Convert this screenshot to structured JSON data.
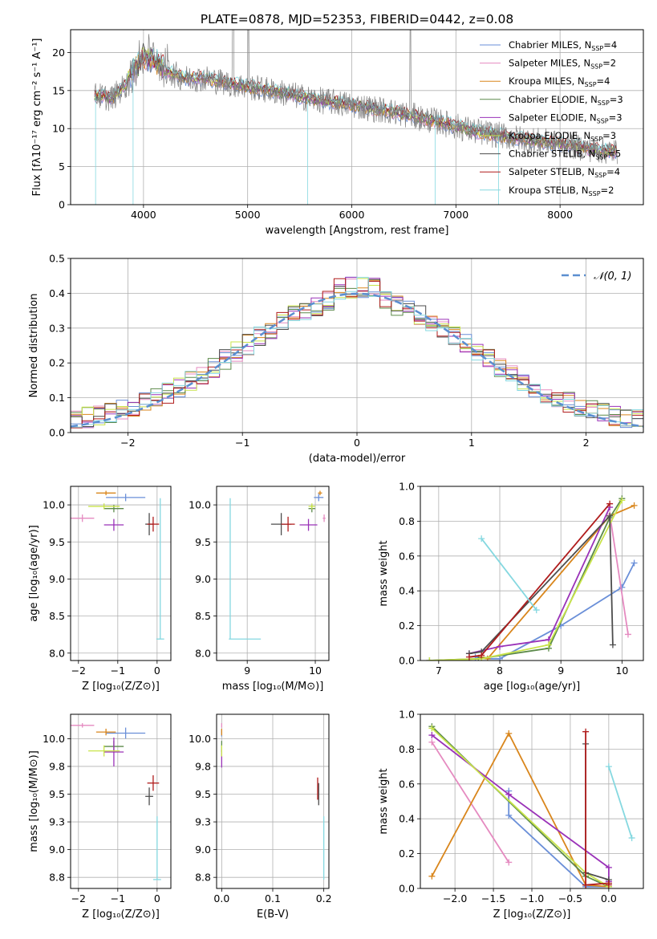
{
  "figure": {
    "title": "PLATE=0878, MJD=52353, FIBERID=0442, z=0.08"
  },
  "series": [
    {
      "name": "Chabrier MILES, N",
      "sub": "SSP",
      "tail": "=4",
      "color": "#6a8fd8"
    },
    {
      "name": "Salpeter MILES, N",
      "sub": "SSP",
      "tail": "=2",
      "color": "#e58ac0"
    },
    {
      "name": "Kroupa MILES, N",
      "sub": "SSP",
      "tail": "=4",
      "color": "#d9861c"
    },
    {
      "name": "Chabrier ELODIE, N",
      "sub": "SSP",
      "tail": "=3",
      "color": "#5c8a4a"
    },
    {
      "name": "Salpeter ELODIE, N",
      "sub": "SSP",
      "tail": "=3",
      "color": "#9a32b8"
    },
    {
      "name": "Kroupa ELODIE, N",
      "sub": "SSP",
      "tail": "=3",
      "color": "#c9e44a"
    },
    {
      "name": "Chabrier STELIB, N",
      "sub": "SSP",
      "tail": "=5",
      "color": "#4d4d4d"
    },
    {
      "name": "Salpeter STELIB, N",
      "sub": "SSP",
      "tail": "=4",
      "color": "#b01c1c"
    },
    {
      "name": "Kroupa STELIB, N",
      "sub": "SSP",
      "tail": "=2",
      "color": "#85d8e0"
    }
  ],
  "chart_data": [
    {
      "id": "spectrum",
      "type": "line",
      "xlabel": "wavelength [Angstrom, rest frame]",
      "ylabel": "Flux [fλ10⁻¹⁷ erg cm⁻² s⁻¹ A⁻¹]",
      "xlim": [
        3300,
        8800
      ],
      "ylim": [
        0,
        23
      ],
      "xticks": [
        4000,
        5000,
        6000,
        7000,
        8000
      ],
      "yticks": [
        0,
        5,
        10,
        15,
        20
      ],
      "data_color": "#808080",
      "continuum": [
        [
          3550,
          14.3
        ],
        [
          3700,
          14.0
        ],
        [
          3850,
          16.0
        ],
        [
          4000,
          19.0
        ],
        [
          4200,
          17.6
        ],
        [
          4400,
          16.6
        ],
        [
          4600,
          16.6
        ],
        [
          4800,
          16.0
        ],
        [
          5000,
          15.5
        ],
        [
          5300,
          14.8
        ],
        [
          5600,
          13.9
        ],
        [
          6000,
          13.1
        ],
        [
          6400,
          12.2
        ],
        [
          6800,
          11.0
        ],
        [
          7200,
          9.6
        ],
        [
          7600,
          8.7
        ],
        [
          8000,
          8.0
        ],
        [
          8400,
          7.1
        ],
        [
          8550,
          7.0
        ]
      ],
      "legend_loc": "upper right"
    },
    {
      "id": "residuals",
      "type": "histogram",
      "xlabel": "(data-model)/error",
      "ylabel": "Normed distribution",
      "xlim": [
        -2.5,
        2.5
      ],
      "ylim": [
        0,
        0.5
      ],
      "xticks": [
        -2,
        -1,
        0,
        1,
        2
      ],
      "yticks": [
        0.0,
        0.1,
        0.2,
        0.3,
        0.4,
        0.5
      ],
      "legend_label": "𝒩(0, 1)",
      "gaussian_color": "#5b8fd0",
      "legend_loc": "upper right"
    },
    {
      "id": "age-vs-Z",
      "type": "errorbar",
      "xlabel": "Z [log₁₀(Z/Z⊙)]",
      "ylabel": "age  [log₁₀(age/yr)]",
      "xlim": [
        -2.2,
        0.35
      ],
      "ylim": [
        7.9,
        10.25
      ],
      "xticks": [
        -2,
        -1,
        0
      ],
      "yticks": [
        8.0,
        8.5,
        9.0,
        9.5,
        10.0
      ],
      "points": [
        {
          "s": 0,
          "x": -0.8,
          "y": 10.1,
          "xe": [
            0.5,
            0.5
          ],
          "ye": [
            0.05,
            0.05
          ]
        },
        {
          "s": 1,
          "x": -1.9,
          "y": 9.82,
          "xe": [
            0.3,
            0.3
          ],
          "ye": [
            0.05,
            0.05
          ]
        },
        {
          "s": 2,
          "x": -1.3,
          "y": 10.16,
          "xe": [
            0.25,
            0.25
          ],
          "ye": [
            0.03,
            0.03
          ]
        },
        {
          "s": 3,
          "x": -1.1,
          "y": 9.95,
          "xe": [
            0.25,
            0.25
          ],
          "ye": [
            0.05,
            0.05
          ]
        },
        {
          "s": 4,
          "x": -1.1,
          "y": 9.73,
          "xe": [
            0.25,
            0.25
          ],
          "ye": [
            0.08,
            0.08
          ]
        },
        {
          "s": 5,
          "x": -1.35,
          "y": 9.98,
          "xe": [
            0.4,
            0.4
          ],
          "ye": [
            0.04,
            0.04
          ]
        },
        {
          "s": 6,
          "x": -0.2,
          "y": 9.74,
          "xe": [
            0.1,
            0.1
          ],
          "ye": [
            0.15,
            0.15
          ]
        },
        {
          "s": 7,
          "x": -0.1,
          "y": 9.74,
          "xe": [
            0.15,
            0.15
          ],
          "ye": [
            0.1,
            0.1
          ]
        },
        {
          "s": 8,
          "x": 0.08,
          "y": 8.19,
          "xe": [
            0.1,
            0.1
          ],
          "ye": [
            0.0,
            1.9
          ]
        }
      ]
    },
    {
      "id": "age-vs-mass",
      "type": "errorbar",
      "xlabel": "mass [log₁₀(M/M⊙)]",
      "ylabel": "",
      "xlim": [
        8.55,
        10.2
      ],
      "ylim": [
        7.9,
        10.25
      ],
      "xticks": [
        9,
        10
      ],
      "yticks": [
        8.0,
        8.5,
        9.0,
        9.5,
        10.0
      ],
      "points": [
        {
          "s": 0,
          "x": 10.05,
          "y": 10.1,
          "xe": [
            0.07,
            0.07
          ],
          "ye": [
            0.05,
            0.05
          ]
        },
        {
          "s": 1,
          "x": 10.13,
          "y": 9.82,
          "xe": [
            0.02,
            0.02
          ],
          "ye": [
            0.05,
            0.05
          ]
        },
        {
          "s": 2,
          "x": 10.07,
          "y": 10.16,
          "xe": [
            0.03,
            0.03
          ],
          "ye": [
            0.03,
            0.03
          ]
        },
        {
          "s": 3,
          "x": 9.95,
          "y": 9.95,
          "xe": [
            0.05,
            0.05
          ],
          "ye": [
            0.05,
            0.05
          ]
        },
        {
          "s": 4,
          "x": 9.9,
          "y": 9.73,
          "xe": [
            0.13,
            0.13
          ],
          "ye": [
            0.08,
            0.08
          ]
        },
        {
          "s": 5,
          "x": 9.95,
          "y": 9.98,
          "xe": [
            0.05,
            0.05
          ],
          "ye": [
            0.04,
            0.04
          ]
        },
        {
          "s": 6,
          "x": 9.5,
          "y": 9.74,
          "xe": [
            0.15,
            0.15
          ],
          "ye": [
            0.15,
            0.15
          ]
        },
        {
          "s": 7,
          "x": 9.6,
          "y": 9.74,
          "xe": [
            0.1,
            0.1
          ],
          "ye": [
            0.1,
            0.1
          ]
        },
        {
          "s": 8,
          "x": 8.75,
          "y": 8.19,
          "xe": [
            0.02,
            0.45
          ],
          "ye": [
            0.0,
            1.9
          ]
        }
      ]
    },
    {
      "id": "massweight-vs-age",
      "type": "line",
      "xlabel": "age  [log₁₀(age/yr)]",
      "ylabel": "mass weight",
      "xlim": [
        6.7,
        10.35
      ],
      "ylim": [
        0,
        1.0
      ],
      "xticks": [
        7,
        8,
        9,
        10
      ],
      "yticks": [
        0.0,
        0.2,
        0.4,
        0.6,
        0.8,
        1.0
      ],
      "lines": [
        {
          "s": 0,
          "x": [
            7.6,
            7.8,
            8.0,
            9.0,
            10.0,
            10.2
          ],
          "y": [
            0.02,
            0.01,
            0.01,
            0.2,
            0.42,
            0.56
          ]
        },
        {
          "s": 1,
          "x": [
            9.8,
            10.1
          ],
          "y": [
            0.84,
            0.15
          ]
        },
        {
          "s": 2,
          "x": [
            7.7,
            7.8,
            9.8,
            10.2
          ],
          "y": [
            0.02,
            0.01,
            0.83,
            0.89
          ]
        },
        {
          "s": 3,
          "x": [
            6.85,
            7.65,
            8.8,
            9.8,
            10.0
          ],
          "y": [
            0.0,
            0.01,
            0.07,
            0.82,
            0.93
          ]
        },
        {
          "s": 4,
          "x": [
            7.5,
            8.0,
            8.8,
            9.8
          ],
          "y": [
            0.04,
            0.08,
            0.12,
            0.88
          ]
        },
        {
          "s": 5,
          "x": [
            6.85,
            7.7,
            8.8,
            10.0
          ],
          "y": [
            0.0,
            0.01,
            0.09,
            0.92
          ]
        },
        {
          "s": 6,
          "x": [
            7.5,
            7.7,
            9.8,
            9.85
          ],
          "y": [
            0.04,
            0.05,
            0.83,
            0.09
          ]
        },
        {
          "s": 7,
          "x": [
            7.5,
            7.7,
            9.8
          ],
          "y": [
            0.02,
            0.03,
            0.9
          ]
        },
        {
          "s": 8,
          "x": [
            7.7,
            8.6
          ],
          "y": [
            0.7,
            0.29
          ]
        }
      ]
    },
    {
      "id": "mass-vs-Z",
      "type": "errorbar",
      "xlabel": "Z [log₁₀(Z/Z⊙)]",
      "ylabel": "mass [log₁₀(M/M⊙)]",
      "xlim": [
        -2.2,
        0.35
      ],
      "ylim": [
        8.65,
        10.22
      ],
      "xticks": [
        -2,
        -1,
        0
      ],
      "yticks": [
        8.75,
        9.0,
        9.25,
        9.5,
        9.75,
        10.0
      ],
      "points": [
        {
          "s": 0,
          "x": -0.8,
          "y": 10.05,
          "xe": [
            0.5,
            0.5
          ],
          "ye": [
            0.05,
            0.05
          ]
        },
        {
          "s": 1,
          "x": -1.9,
          "y": 10.12,
          "xe": [
            0.3,
            0.3
          ],
          "ye": [
            0.02,
            0.02
          ]
        },
        {
          "s": 2,
          "x": -1.3,
          "y": 10.06,
          "xe": [
            0.25,
            0.25
          ],
          "ye": [
            0.03,
            0.03
          ]
        },
        {
          "s": 3,
          "x": -1.1,
          "y": 9.93,
          "xe": [
            0.25,
            0.25
          ],
          "ye": [
            0.05,
            0.05
          ]
        },
        {
          "s": 4,
          "x": -1.1,
          "y": 9.88,
          "xe": [
            0.25,
            0.25
          ],
          "ye": [
            0.13,
            0.13
          ]
        },
        {
          "s": 5,
          "x": -1.35,
          "y": 9.89,
          "xe": [
            0.4,
            0.4
          ],
          "ye": [
            0.05,
            0.05
          ]
        },
        {
          "s": 6,
          "x": -0.2,
          "y": 9.48,
          "xe": [
            0.1,
            0.1
          ],
          "ye": [
            0.08,
            0.08
          ]
        },
        {
          "s": 7,
          "x": -0.1,
          "y": 9.6,
          "xe": [
            0.15,
            0.15
          ],
          "ye": [
            0.07,
            0.07
          ]
        },
        {
          "s": 8,
          "x": 0.0,
          "y": 8.73,
          "xe": [
            0.1,
            0.1
          ],
          "ye": [
            0.0,
            0.57
          ]
        }
      ]
    },
    {
      "id": "mass-vs-EBV",
      "type": "errorbar",
      "xlabel": "E(B-V)",
      "ylabel": "",
      "xlim": [
        -0.01,
        0.21
      ],
      "ylim": [
        8.65,
        10.22
      ],
      "xticks": [
        0.0,
        0.1,
        0.2
      ],
      "yticks": [
        8.75,
        9.0,
        9.25,
        9.5,
        9.75,
        10.0
      ],
      "points": [
        {
          "s": 0,
          "x": 0.0,
          "y": 10.05,
          "xe": [
            0,
            0
          ],
          "ye": [
            0.03,
            0.03
          ]
        },
        {
          "s": 1,
          "x": 0.0,
          "y": 10.12,
          "xe": [
            0,
            0
          ],
          "ye": [
            0.02,
            0.02
          ]
        },
        {
          "s": 2,
          "x": 0.0,
          "y": 10.06,
          "xe": [
            0,
            0
          ],
          "ye": [
            0.03,
            0.03
          ]
        },
        {
          "s": 3,
          "x": 0.0,
          "y": 9.93,
          "xe": [
            0,
            0
          ],
          "ye": [
            0.05,
            0.05
          ]
        },
        {
          "s": 4,
          "x": 0.0,
          "y": 9.82,
          "xe": [
            0,
            0
          ],
          "ye": [
            0.08,
            0.08
          ]
        },
        {
          "s": 5,
          "x": 0.0,
          "y": 9.89,
          "xe": [
            0,
            0
          ],
          "ye": [
            0.05,
            0.05
          ]
        },
        {
          "s": 6,
          "x": 0.19,
          "y": 9.5,
          "xe": [
            0,
            0
          ],
          "ye": [
            0.1,
            0.1
          ]
        },
        {
          "s": 7,
          "x": 0.188,
          "y": 9.55,
          "xe": [
            0,
            0
          ],
          "ye": [
            0.1,
            0.1
          ]
        },
        {
          "s": 8,
          "x": 0.2,
          "y": 8.73,
          "xe": [
            0,
            0
          ],
          "ye": [
            0.0,
            0.57
          ]
        }
      ]
    },
    {
      "id": "massweight-vs-Z",
      "type": "line",
      "xlabel": "Z [log₁₀(Z/Z⊙)]",
      "ylabel": "mass weight",
      "xlim": [
        -2.45,
        0.45
      ],
      "ylim": [
        0,
        1.0
      ],
      "xticks": [
        -2.0,
        -1.5,
        -1.0,
        -0.5,
        0.0
      ],
      "yticks": [
        0.0,
        0.2,
        0.4,
        0.6,
        0.8,
        1.0
      ],
      "lines": [
        {
          "s": 0,
          "x": [
            -1.3,
            -1.3,
            -0.3,
            0.0
          ],
          "y": [
            0.56,
            0.42,
            0.01,
            0.01
          ]
        },
        {
          "s": 1,
          "x": [
            -2.3,
            -1.3
          ],
          "y": [
            0.84,
            0.15
          ]
        },
        {
          "s": 2,
          "x": [
            -2.3,
            -1.3,
            -0.3,
            0.0
          ],
          "y": [
            0.07,
            0.89,
            0.02,
            0.01
          ]
        },
        {
          "s": 3,
          "x": [
            -2.3,
            -0.3,
            0.0
          ],
          "y": [
            0.93,
            0.07,
            0.01
          ]
        },
        {
          "s": 4,
          "x": [
            -2.3,
            -1.3,
            0.0,
            0.0
          ],
          "y": [
            0.88,
            0.54,
            0.12,
            0.04
          ]
        },
        {
          "s": 5,
          "x": [
            -2.3,
            -0.3,
            0.0
          ],
          "y": [
            0.92,
            0.09,
            0.01
          ]
        },
        {
          "s": 6,
          "x": [
            -0.3,
            -0.3,
            0.0,
            0.0
          ],
          "y": [
            0.83,
            0.09,
            0.05,
            0.03
          ]
        },
        {
          "s": 7,
          "x": [
            -0.3,
            -0.3,
            0.0,
            0.0
          ],
          "y": [
            0.9,
            0.02,
            0.03,
            0.02
          ]
        },
        {
          "s": 8,
          "x": [
            0.0,
            0.3
          ],
          "y": [
            0.7,
            0.29
          ]
        }
      ]
    }
  ]
}
